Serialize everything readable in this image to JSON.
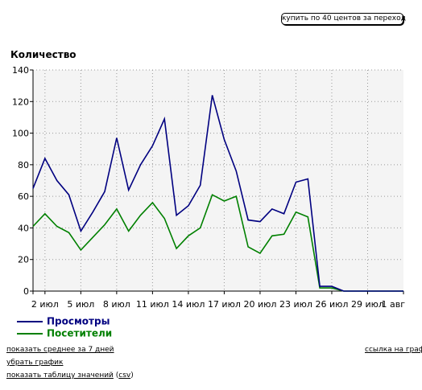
{
  "buy_button": "купить по 40 центов за переход",
  "chart_data": {
    "type": "line",
    "ylabel": "Количество",
    "ylim": [
      0,
      140
    ],
    "yticks": [
      0,
      20,
      40,
      60,
      80,
      100,
      120,
      140
    ],
    "x": [
      "1 июл",
      "2 июл",
      "3 июл",
      "4 июл",
      "5 июл",
      "6 июл",
      "7 июл",
      "8 июл",
      "9 июл",
      "10 июл",
      "11 июл",
      "12 июл",
      "13 июл",
      "14 июл",
      "15 июл",
      "16 июл",
      "17 июл",
      "18 июл",
      "19 июл",
      "20 июл",
      "21 июл",
      "22 июл",
      "23 июл",
      "24 июл",
      "25 июл",
      "26 июл",
      "27 июл",
      "28 июл",
      "29 июл",
      "30 июл",
      "31 июл",
      "1 авг"
    ],
    "xtick_labels": [
      "2 июл",
      "5 июл",
      "8 июл",
      "11 июл",
      "14 июл",
      "17 июл",
      "20 июл",
      "23 июл",
      "26 июл",
      "29 июл",
      "1 авг"
    ],
    "grid": true,
    "legend_position": "bottom-left",
    "series": [
      {
        "name": "Просмотры",
        "color": "#000080",
        "values": [
          65,
          84,
          70,
          61,
          38,
          50,
          63,
          97,
          64,
          80,
          92,
          109,
          48,
          54,
          67,
          124,
          96,
          76,
          45,
          44,
          52,
          49,
          69,
          71,
          3,
          3,
          0,
          0,
          0,
          0,
          0,
          0
        ]
      },
      {
        "name": "Посетители",
        "color": "#008000",
        "values": [
          41,
          49,
          41,
          37,
          26,
          34,
          42,
          52,
          38,
          48,
          56,
          46,
          27,
          35,
          40,
          61,
          57,
          60,
          28,
          24,
          35,
          36,
          50,
          47,
          2,
          2,
          0,
          0,
          0,
          0,
          0,
          0
        ]
      }
    ]
  },
  "links": {
    "avg7": "показать среднее за 7 дней",
    "remove": "убрать график",
    "table": "показать таблицу значений",
    "csv": "csv",
    "chart_link": "ссылка на график"
  }
}
